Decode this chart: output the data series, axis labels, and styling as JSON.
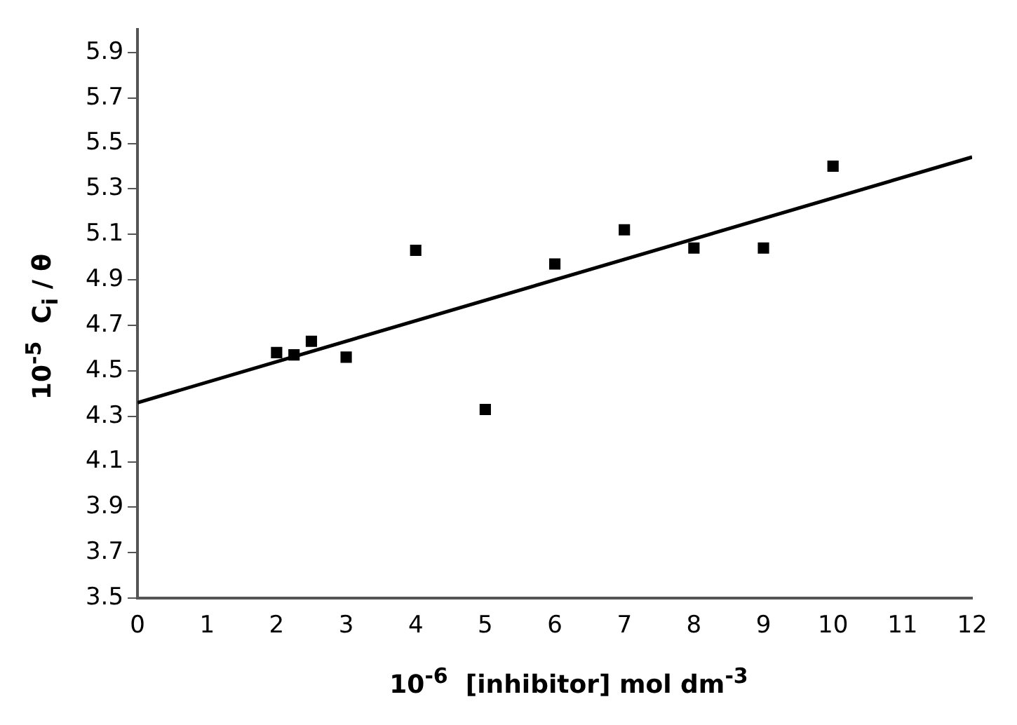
{
  "chart_data": {
    "type": "scatter",
    "xlabel": "10$^{-6}$  [inhibitor] mol dm$^{-3}$",
    "ylabel": "10$^{-5}$  C$_{i}$ / θ",
    "xlim": [
      0,
      12
    ],
    "xticks": [
      0,
      1,
      2,
      3,
      4,
      5,
      6,
      7,
      8,
      9,
      10,
      11,
      12
    ],
    "ylim": [
      3.5,
      6
    ],
    "yticks": [
      3.5,
      3.7,
      3.9,
      4.1,
      4.3,
      4.5,
      4.7,
      4.9,
      5.1,
      5.3,
      5.5,
      5.7,
      5.9
    ],
    "grid": false,
    "legend": false,
    "marker": "square",
    "series": [
      {
        "color": "#000000",
        "x": [
          2,
          2.25,
          2.5,
          3,
          4,
          5,
          6,
          7,
          8,
          9,
          10
        ],
        "values": [
          4.58,
          4.57,
          4.63,
          4.56,
          5.03,
          4.33,
          4.97,
          5.12,
          5.04,
          5.04,
          5.4
        ]
      },
      {
        "type": "line",
        "color": "#000000",
        "marker": "none",
        "line_style": "solid",
        "x": [
          0,
          12
        ],
        "values": [
          4.36,
          5.44
        ]
      }
    ]
  }
}
